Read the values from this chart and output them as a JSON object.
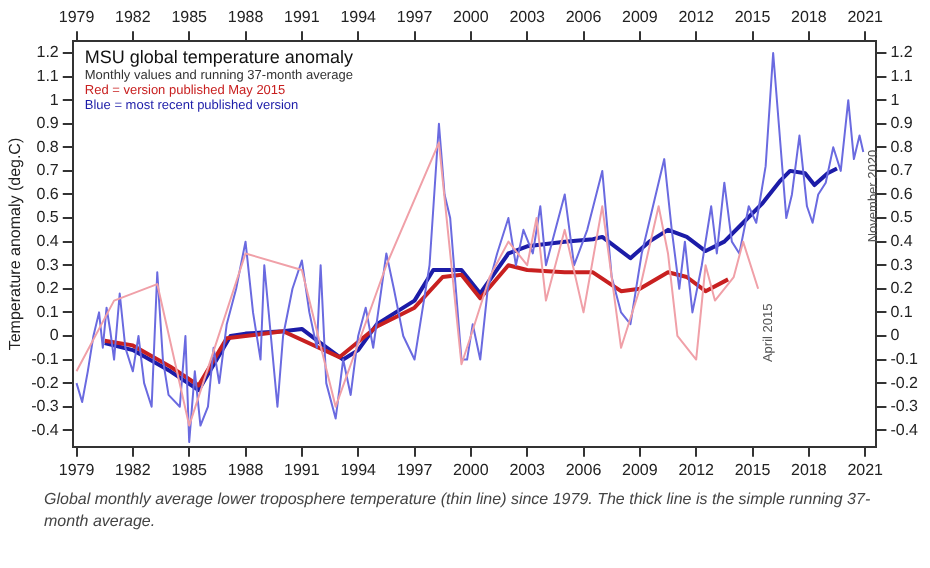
{
  "chart_data": {
    "type": "line",
    "title": "MSU global temperature anomaly",
    "subtitle": "Monthly values and running 37-month average",
    "ylabel": "Temperature anomaly (deg.C)",
    "legend": "top left",
    "grid": false,
    "marker": "none",
    "xlim": [
      1978.8,
      2021.6
    ],
    "xticks": [
      1979,
      1982,
      1985,
      1988,
      1991,
      1994,
      1997,
      2000,
      2003,
      2006,
      2009,
      2012,
      2015,
      2018,
      2021
    ],
    "x2lim": [
      1978.8,
      2021.6
    ],
    "x2ticks": [
      1979,
      1982,
      1985,
      1988,
      1991,
      1994,
      1997,
      2000,
      2003,
      2006,
      2009,
      2012,
      2015,
      2018,
      2021
    ],
    "ylim": [
      -0.47,
      1.25
    ],
    "yticks": [
      -0.4,
      -0.3,
      -0.2,
      -0.1,
      0,
      0.1,
      0.2,
      0.3,
      0.4,
      0.5,
      0.6,
      0.7,
      0.8,
      0.9,
      1,
      1.1,
      1.2
    ],
    "y2lim": [
      -0.47,
      1.25
    ],
    "y2ticks": [
      -0.4,
      -0.3,
      -0.2,
      -0.1,
      0,
      0.1,
      0.2,
      0.3,
      0.4,
      0.5,
      0.6,
      0.7,
      0.8,
      0.9,
      1,
      1.1,
      1.2
    ],
    "series": [
      {
        "color": "#f0a0a8",
        "x": [
          1979,
          1981,
          1983.3,
          1985,
          1988,
          1991,
          1992.8,
          1995.5,
          1998.3,
          1999.5,
          2000,
          2001,
          2002,
          2003,
          2003.5,
          2004,
          2005,
          2006,
          2007,
          2008,
          2009,
          2010,
          2010.5,
          2011,
          2012,
          2012.5,
          2013,
          2014,
          2014.5,
          2015.3
        ],
        "values": [
          -0.15,
          0.15,
          0.22,
          -0.38,
          0.35,
          0.28,
          -0.3,
          0.3,
          0.82,
          -0.12,
          0,
          0.25,
          0.4,
          0.3,
          0.5,
          0.15,
          0.45,
          0.1,
          0.55,
          -0.05,
          0.2,
          0.55,
          0.35,
          0,
          -0.1,
          0.3,
          0.15,
          0.25,
          0.4,
          0.2
        ]
      },
      {
        "color": "#6a6ae0",
        "x": [
          1979,
          1979.3,
          1979.6,
          1979.9,
          1980.2,
          1980.4,
          1980.6,
          1980.8,
          1981,
          1981.3,
          1981.6,
          1982,
          1982.3,
          1982.6,
          1983,
          1983.3,
          1983.6,
          1983.9,
          1984.5,
          1984.8,
          1985,
          1985.3,
          1985.6,
          1986,
          1986.3,
          1986.6,
          1987,
          1987.5,
          1988,
          1988.4,
          1988.8,
          1989,
          1989.7,
          1990,
          1990.5,
          1991,
          1991.4,
          1991.8,
          1992,
          1992.3,
          1992.8,
          1993.2,
          1993.6,
          1994,
          1994.4,
          1994.8,
          1995.5,
          1995.9,
          1996.4,
          1997,
          1997.4,
          1997.8,
          1998.3,
          1998.6,
          1998.9,
          1999.2,
          1999.5,
          1999.8,
          2000.1,
          2000.5,
          2000.9,
          2001.4,
          2002,
          2002.4,
          2002.8,
          2003.3,
          2003.7,
          2004,
          2005,
          2005.5,
          2006.2,
          2007,
          2007.5,
          2008,
          2008.5,
          2009.1,
          2009.7,
          2010.3,
          2010.7,
          2011.1,
          2011.4,
          2011.8,
          2012.3,
          2012.8,
          2013.1,
          2013.5,
          2013.9,
          2014.3,
          2014.8,
          2015.2,
          2015.7,
          2016.1,
          2016.4,
          2016.8,
          2017.1,
          2017.5,
          2017.9,
          2018.2,
          2018.5,
          2018.9,
          2019.3,
          2019.7,
          2020.1,
          2020.4,
          2020.7,
          2020.9
        ],
        "values": [
          -0.2,
          -0.28,
          -0.15,
          0,
          0.1,
          -0.05,
          0.12,
          0.02,
          -0.1,
          0.18,
          -0.05,
          -0.15,
          0,
          -0.2,
          -0.3,
          0.27,
          -0.1,
          -0.25,
          -0.3,
          0,
          -0.45,
          -0.15,
          -0.38,
          -0.3,
          -0.05,
          -0.2,
          0.05,
          0.2,
          0.4,
          0.1,
          -0.1,
          0.3,
          -0.3,
          0,
          0.2,
          0.32,
          0.1,
          -0.05,
          0.3,
          -0.2,
          -0.35,
          -0.1,
          -0.25,
          0,
          0.12,
          -0.05,
          0.35,
          0.2,
          0,
          -0.1,
          0.1,
          0.3,
          0.9,
          0.6,
          0.5,
          0.2,
          -0.1,
          -0.1,
          0.05,
          -0.1,
          0.2,
          0.35,
          0.5,
          0.3,
          0.45,
          0.35,
          0.55,
          0.3,
          0.6,
          0.3,
          0.45,
          0.7,
          0.25,
          0.1,
          0.05,
          0.35,
          0.55,
          0.75,
          0.45,
          0.2,
          0.4,
          0.1,
          0.3,
          0.55,
          0.35,
          0.65,
          0.4,
          0.35,
          0.55,
          0.48,
          0.72,
          1.2,
          0.9,
          0.5,
          0.6,
          0.85,
          0.55,
          0.48,
          0.6,
          0.65,
          0.8,
          0.7,
          1,
          0.75,
          0.85,
          0.78
        ]
      },
      {
        "name": "Red = version published May 2015",
        "color": "#c82020",
        "x": [
          1980.5,
          1982,
          1984,
          1985.5,
          1987,
          1990,
          1993,
          1995,
          1997,
          1998.5,
          1999.5,
          2000.5,
          2002,
          2003,
          2005,
          2006.5,
          2008,
          2009,
          2010.5,
          2011.5,
          2012.5,
          2013.7
        ],
        "values": [
          -0.02,
          -0.04,
          -0.13,
          -0.21,
          -0.01,
          0.02,
          -0.09,
          0.04,
          0.12,
          0.25,
          0.26,
          0.16,
          0.3,
          0.28,
          0.27,
          0.27,
          0.19,
          0.2,
          0.27,
          0.25,
          0.19,
          0.24
        ]
      },
      {
        "name": "Blue = most recent published version",
        "color": "#1c1ca8",
        "x": [
          1980.5,
          1982,
          1984,
          1985.5,
          1987.2,
          1988,
          1990,
          1991,
          1992,
          1993.2,
          1994,
          1995,
          1996,
          1997,
          1998,
          1999.5,
          2000.5,
          2002,
          2003,
          2005,
          2006.5,
          2007,
          2008.5,
          2009.5,
          2010.5,
          2011.5,
          2012.5,
          2013.5,
          2014.5,
          2015.5,
          2016.5,
          2017,
          2017.8,
          2018.3,
          2019,
          2019.5
        ],
        "values": [
          -0.03,
          -0.06,
          -0.15,
          -0.23,
          0,
          0.01,
          0.02,
          0.03,
          -0.03,
          -0.1,
          -0.06,
          0.05,
          0.1,
          0.15,
          0.28,
          0.28,
          0.18,
          0.35,
          0.38,
          0.4,
          0.41,
          0.42,
          0.33,
          0.4,
          0.45,
          0.42,
          0.36,
          0.4,
          0.48,
          0.56,
          0.66,
          0.7,
          0.69,
          0.64,
          0.69,
          0.71
        ]
      }
    ],
    "annotations": [
      {
        "text": "November 2020",
        "x": 2020.9,
        "y": 0.78
      },
      {
        "text": "April 2015",
        "x": 2015.3,
        "y": 0.2
      },
      "Global monthly average lower troposphere temperature (thin line) since 1979. The thick line is the simple running 37-month average."
    ]
  }
}
